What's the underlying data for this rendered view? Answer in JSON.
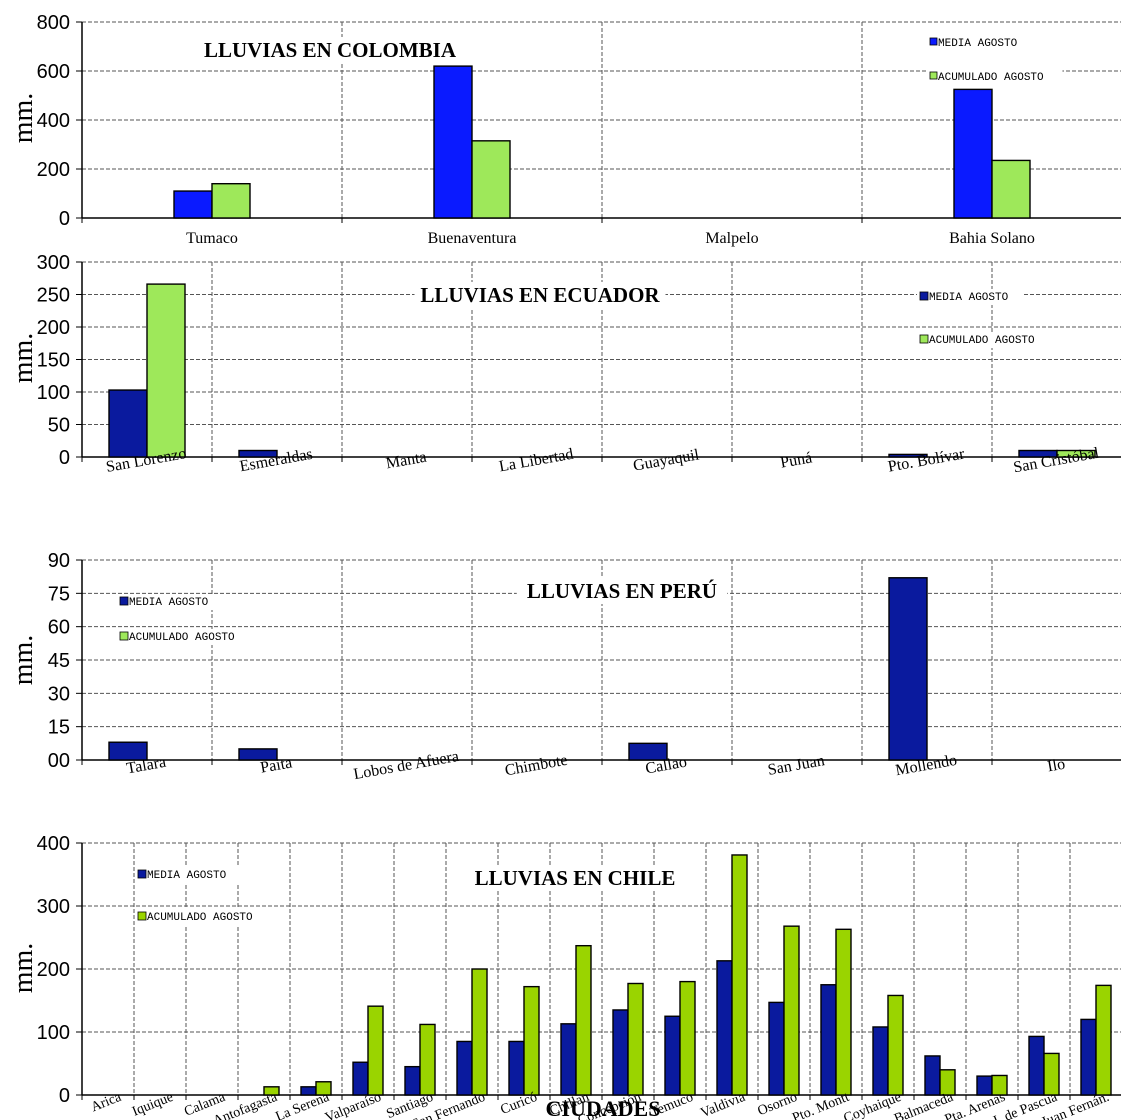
{
  "colors": {
    "media": "#0a1aff",
    "media_dark": "#0a1a9e",
    "acumulado": "#9ee85a",
    "acumulado_yellow": "#9ad400"
  },
  "chart_data": [
    {
      "type": "bar",
      "title": "LLUVIAS EN COLOMBIA",
      "ylabel": "mm.",
      "xlabel": "",
      "ylim": [
        0,
        800
      ],
      "yticks": [
        "0",
        "200",
        "400",
        "600",
        "800"
      ],
      "grid": true,
      "legend_position": "top-right",
      "categories": [
        "Tumaco",
        "Buenaventura",
        "Malpelo",
        "Bahia Solano"
      ],
      "series": [
        {
          "name": "MEDIA AGOSTO",
          "color": "#0a1aff",
          "values": [
            110,
            620,
            null,
            525
          ]
        },
        {
          "name": "ACUMULADO AGOSTO",
          "color": "#9ee85a",
          "values": [
            140,
            315,
            null,
            235
          ]
        }
      ]
    },
    {
      "type": "bar",
      "title": "LLUVIAS EN ECUADOR",
      "ylabel": "mm.",
      "xlabel": "",
      "ylim": [
        0,
        300
      ],
      "yticks": [
        "0",
        "50",
        "100",
        "150",
        "200",
        "250",
        "300"
      ],
      "grid": true,
      "legend_position": "top-right",
      "categories": [
        "San Lorenzo",
        "Esmeraldas",
        "Manta",
        "La Libertad",
        "Guayaquil",
        "Puná",
        "Pto. Bolívar",
        "San Cristóbal"
      ],
      "series": [
        {
          "name": "MEDIA AGOSTO",
          "color": "#0a1a9e",
          "values": [
            103,
            10,
            null,
            null,
            null,
            null,
            4,
            10
          ]
        },
        {
          "name": "ACUMULADO AGOSTO",
          "color": "#9ee85a",
          "values": [
            266,
            null,
            null,
            null,
            null,
            null,
            null,
            10
          ]
        }
      ]
    },
    {
      "type": "bar",
      "title": "LLUVIAS EN PERÚ",
      "ylabel": "mm.",
      "xlabel": "",
      "ylim": [
        0,
        90
      ],
      "yticks": [
        "00",
        "15",
        "30",
        "45",
        "60",
        "75",
        "90"
      ],
      "grid": true,
      "legend_position": "top-left",
      "categories": [
        "Talara",
        "Paita",
        "Lobos de Afuera",
        "Chimbote",
        "Callao",
        "San Juan",
        "Mollendo",
        "Ilo"
      ],
      "series": [
        {
          "name": "MEDIA AGOSTO",
          "color": "#0a1a9e",
          "values": [
            8,
            5,
            null,
            null,
            7.5,
            null,
            82,
            null
          ]
        },
        {
          "name": "ACUMULADO AGOSTO",
          "color": "#9ee85a",
          "values": [
            null,
            null,
            null,
            null,
            null,
            null,
            null,
            null
          ]
        }
      ]
    },
    {
      "type": "bar",
      "title": "LLUVIAS EN CHILE",
      "ylabel": "mm.",
      "xlabel": "CIUDADES",
      "ylim": [
        0,
        400
      ],
      "yticks": [
        "0",
        "100",
        "200",
        "300",
        "400"
      ],
      "grid": true,
      "legend_position": "top-left",
      "categories": [
        "Arica",
        "Iquique",
        "Calama",
        "Antofagasta",
        "La Serena",
        "Valparaíso",
        "Santiago",
        "San Fernando",
        "Curicó",
        "Chillan",
        "Concepción",
        "Temuco",
        "Valdivia",
        "Osorno",
        "Pto. Montt",
        "Coyhaique",
        "Balmaceda",
        "Pta. Arenas",
        "I. de Pascua",
        "Juan Fernán."
      ],
      "series": [
        {
          "name": "MEDIA AGOSTO",
          "color": "#0a1a9e",
          "values": [
            null,
            null,
            null,
            null,
            13,
            52,
            45,
            85,
            85,
            113,
            135,
            125,
            213,
            147,
            175,
            108,
            62,
            30,
            93,
            120
          ]
        },
        {
          "name": "ACUMULADO AGOSTO",
          "color": "#9ad400",
          "values": [
            null,
            null,
            null,
            13,
            21,
            141,
            112,
            200,
            172,
            237,
            177,
            180,
            381,
            268,
            263,
            158,
            40,
            31,
            66,
            174
          ]
        }
      ]
    }
  ]
}
